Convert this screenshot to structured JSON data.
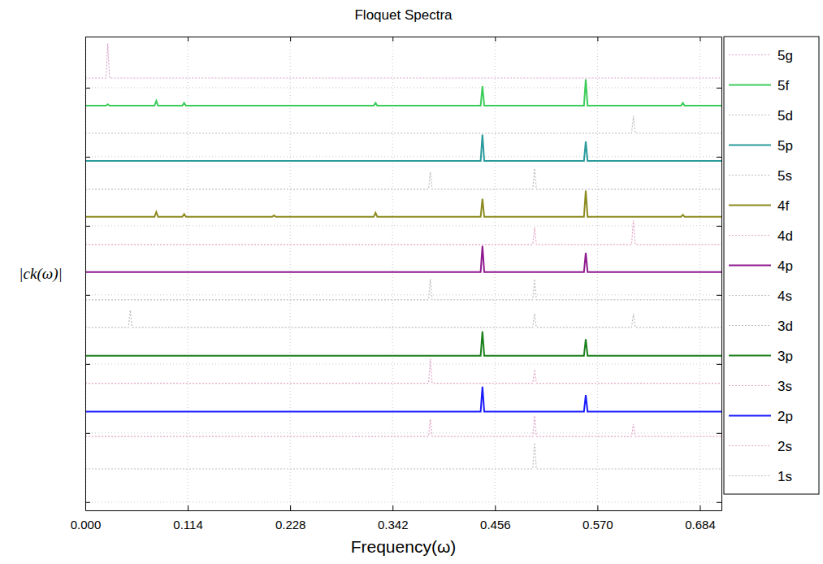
{
  "chart_data": {
    "type": "line",
    "title": "Floquet Spectra",
    "x_label": "Frequency(ω)",
    "y_label": "|ck(ω)|",
    "x": [
      0,
      0.023,
      0.025,
      0.027,
      0.048,
      0.05,
      0.052,
      0.077,
      0.079,
      0.081,
      0.108,
      0.11,
      0.112,
      0.208,
      0.21,
      0.212,
      0.321,
      0.323,
      0.325,
      0.382,
      0.384,
      0.386,
      0.44,
      0.442,
      0.444,
      0.498,
      0.5,
      0.502,
      0.555,
      0.557,
      0.559,
      0.608,
      0.61,
      0.612,
      0.663,
      0.665,
      0.667,
      0.708
    ],
    "xlim": [
      0,
      0.708
    ],
    "xticks": [
      {
        "value": 0,
        "label": "0.000"
      },
      0.114,
      0.228,
      0.342,
      0.456,
      {
        "value": 0.57,
        "label": "0.570"
      },
      0.684
    ],
    "ylim": [
      -0.12,
      6.74
    ],
    "yticks": [
      0,
      1,
      2,
      3,
      4,
      5,
      6
    ],
    "tick_labels": "x",
    "grid": true,
    "legend": "right",
    "series": [
      {
        "name": "5g",
        "color": "#d9a3c8",
        "line_style": "dotted",
        "values": [
          6.14,
          6.14,
          6.64,
          6.14,
          6.14,
          6.14,
          6.14,
          6.14,
          6.14,
          6.14,
          6.14,
          6.14,
          6.14,
          6.14,
          6.14,
          6.14,
          6.14,
          6.14,
          6.14,
          6.14,
          6.14,
          6.14,
          6.14,
          6.14,
          6.14,
          6.14,
          6.14,
          6.14,
          6.14,
          6.14,
          6.14,
          6.14,
          6.14,
          6.14,
          6.14,
          6.14,
          6.14,
          6.14
        ]
      },
      {
        "name": "5f",
        "color": "#3ccc5a",
        "line_style": "solid",
        "values": [
          5.74,
          5.74,
          5.76,
          5.74,
          5.74,
          5.74,
          5.74,
          5.74,
          5.81,
          5.74,
          5.74,
          5.78,
          5.74,
          5.74,
          5.74,
          5.74,
          5.74,
          5.78,
          5.74,
          5.74,
          5.74,
          5.74,
          5.74,
          6.02,
          5.74,
          5.74,
          5.74,
          5.74,
          5.74,
          6.12,
          5.74,
          5.74,
          5.74,
          5.74,
          5.74,
          5.78,
          5.74,
          5.74
        ]
      },
      {
        "name": "5d",
        "color": "#bdbdbd",
        "line_style": "dotted",
        "values": [
          5.34,
          5.34,
          5.34,
          5.34,
          5.34,
          5.34,
          5.34,
          5.34,
          5.34,
          5.34,
          5.34,
          5.34,
          5.34,
          5.34,
          5.34,
          5.34,
          5.34,
          5.34,
          5.34,
          5.34,
          5.34,
          5.34,
          5.34,
          5.34,
          5.34,
          5.34,
          5.34,
          5.34,
          5.34,
          5.34,
          5.34,
          5.34,
          5.59,
          5.34,
          5.34,
          5.34,
          5.34,
          5.34
        ]
      },
      {
        "name": "5p",
        "color": "#2a9a9c",
        "line_style": "solid",
        "values": [
          4.94,
          4.94,
          4.94,
          4.94,
          4.94,
          4.94,
          4.94,
          4.94,
          4.94,
          4.94,
          4.94,
          4.94,
          4.94,
          4.94,
          4.94,
          4.94,
          4.94,
          4.94,
          4.94,
          4.94,
          4.94,
          4.94,
          4.94,
          5.32,
          4.94,
          4.94,
          4.94,
          4.94,
          4.94,
          5.22,
          4.94,
          4.94,
          4.94,
          4.94,
          4.94,
          4.94,
          4.94,
          4.94
        ]
      },
      {
        "name": "5s",
        "color": "#bdbdbd",
        "line_style": "dotted",
        "values": [
          4.53,
          4.53,
          4.53,
          4.53,
          4.53,
          4.53,
          4.53,
          4.53,
          4.53,
          4.53,
          4.53,
          4.53,
          4.53,
          4.53,
          4.53,
          4.53,
          4.53,
          4.53,
          4.53,
          4.53,
          4.78,
          4.53,
          4.53,
          4.53,
          4.53,
          4.53,
          4.83,
          4.53,
          4.53,
          4.53,
          4.53,
          4.53,
          4.53,
          4.53,
          4.53,
          4.53,
          4.53,
          4.53
        ]
      },
      {
        "name": "4f",
        "color": "#8c8a1e",
        "line_style": "solid",
        "values": [
          4.13,
          4.13,
          4.13,
          4.13,
          4.13,
          4.13,
          4.13,
          4.13,
          4.2,
          4.13,
          4.13,
          4.17,
          4.13,
          4.13,
          4.15,
          4.13,
          4.13,
          4.19,
          4.13,
          4.13,
          4.13,
          4.13,
          4.13,
          4.39,
          4.13,
          4.13,
          4.13,
          4.13,
          4.13,
          4.51,
          4.13,
          4.13,
          4.13,
          4.13,
          4.13,
          4.16,
          4.13,
          4.13
        ]
      },
      {
        "name": "4d",
        "color": "#e2a4c4",
        "line_style": "dotted",
        "values": [
          3.73,
          3.73,
          3.73,
          3.73,
          3.73,
          3.73,
          3.73,
          3.73,
          3.73,
          3.73,
          3.73,
          3.73,
          3.73,
          3.73,
          3.73,
          3.73,
          3.73,
          3.73,
          3.73,
          3.73,
          3.73,
          3.73,
          3.73,
          3.73,
          3.73,
          3.73,
          3.98,
          3.73,
          3.73,
          3.73,
          3.73,
          3.73,
          4.08,
          3.73,
          3.73,
          3.73,
          3.73,
          3.73
        ]
      },
      {
        "name": "4p",
        "color": "#8e1a8e",
        "line_style": "solid",
        "values": [
          3.33,
          3.33,
          3.33,
          3.33,
          3.33,
          3.33,
          3.33,
          3.33,
          3.33,
          3.33,
          3.33,
          3.33,
          3.33,
          3.33,
          3.33,
          3.33,
          3.33,
          3.33,
          3.33,
          3.33,
          3.33,
          3.33,
          3.33,
          3.71,
          3.33,
          3.33,
          3.33,
          3.33,
          3.33,
          3.61,
          3.33,
          3.33,
          3.33,
          3.33,
          3.33,
          3.33,
          3.33,
          3.33
        ]
      },
      {
        "name": "4s",
        "color": "#bdbdbd",
        "line_style": "dotted",
        "values": [
          2.93,
          2.93,
          2.93,
          2.93,
          2.93,
          2.93,
          2.93,
          2.93,
          2.93,
          2.93,
          2.93,
          2.93,
          2.93,
          2.93,
          2.93,
          2.93,
          2.93,
          2.93,
          2.93,
          2.93,
          3.23,
          2.93,
          2.93,
          2.93,
          2.93,
          2.93,
          3.23,
          2.93,
          2.93,
          2.93,
          2.93,
          2.93,
          2.93,
          2.93,
          2.93,
          2.93,
          2.93,
          2.93
        ]
      },
      {
        "name": "3d",
        "color": "#bdbdbd",
        "line_style": "dotted",
        "values": [
          2.53,
          2.53,
          2.53,
          2.53,
          2.53,
          2.78,
          2.53,
          2.53,
          2.53,
          2.53,
          2.53,
          2.53,
          2.53,
          2.53,
          2.53,
          2.53,
          2.53,
          2.53,
          2.53,
          2.53,
          2.53,
          2.53,
          2.53,
          2.53,
          2.53,
          2.53,
          2.73,
          2.53,
          2.53,
          2.53,
          2.53,
          2.53,
          2.73,
          2.53,
          2.53,
          2.53,
          2.53,
          2.53
        ]
      },
      {
        "name": "3p",
        "color": "#1b7f1b",
        "line_style": "solid",
        "values": [
          2.12,
          2.12,
          2.12,
          2.12,
          2.12,
          2.12,
          2.12,
          2.12,
          2.12,
          2.12,
          2.12,
          2.12,
          2.12,
          2.12,
          2.12,
          2.12,
          2.12,
          2.12,
          2.12,
          2.12,
          2.12,
          2.12,
          2.12,
          2.47,
          2.12,
          2.12,
          2.12,
          2.12,
          2.12,
          2.36,
          2.12,
          2.12,
          2.12,
          2.12,
          2.12,
          2.12,
          2.12,
          2.12
        ]
      },
      {
        "name": "3s",
        "color": "#e2a4c4",
        "line_style": "dotted",
        "values": [
          1.72,
          1.72,
          1.72,
          1.72,
          1.72,
          1.72,
          1.72,
          1.72,
          1.72,
          1.72,
          1.72,
          1.72,
          1.72,
          1.72,
          1.72,
          1.72,
          1.72,
          1.72,
          1.72,
          1.72,
          2.07,
          1.72,
          1.72,
          1.72,
          1.72,
          1.72,
          1.92,
          1.72,
          1.72,
          1.72,
          1.72,
          1.72,
          1.72,
          1.72,
          1.72,
          1.72,
          1.72,
          1.72
        ]
      },
      {
        "name": "2p",
        "color": "#1a1aff",
        "line_style": "solid",
        "values": [
          1.31,
          1.31,
          1.31,
          1.31,
          1.31,
          1.31,
          1.31,
          1.31,
          1.31,
          1.31,
          1.31,
          1.31,
          1.31,
          1.31,
          1.31,
          1.31,
          1.31,
          1.31,
          1.31,
          1.31,
          1.31,
          1.31,
          1.31,
          1.67,
          1.31,
          1.31,
          1.31,
          1.31,
          1.31,
          1.55,
          1.31,
          1.31,
          1.31,
          1.31,
          1.31,
          1.31,
          1.31,
          1.31
        ]
      },
      {
        "name": "2s",
        "color": "#e2a4c4",
        "line_style": "dotted",
        "values": [
          0.95,
          0.95,
          0.95,
          0.95,
          0.95,
          0.95,
          0.95,
          0.95,
          0.95,
          0.95,
          0.95,
          0.95,
          0.95,
          0.95,
          0.95,
          0.95,
          0.95,
          0.95,
          0.95,
          0.95,
          1.2,
          0.95,
          0.95,
          0.95,
          0.95,
          0.95,
          1.25,
          0.95,
          0.95,
          0.95,
          0.95,
          0.95,
          1.13,
          0.95,
          0.95,
          0.95,
          0.95,
          0.95
        ]
      },
      {
        "name": "1s",
        "color": "#bdbdbd",
        "line_style": "dotted",
        "values": [
          0.48,
          0.48,
          0.48,
          0.48,
          0.48,
          0.48,
          0.48,
          0.48,
          0.48,
          0.48,
          0.48,
          0.48,
          0.48,
          0.48,
          0.48,
          0.48,
          0.48,
          0.48,
          0.48,
          0.48,
          0.48,
          0.48,
          0.48,
          0.48,
          0.48,
          0.48,
          0.86,
          0.48,
          0.48,
          0.48,
          0.48,
          0.48,
          0.48,
          0.48,
          0.48,
          0.48,
          0.48,
          0.48
        ]
      }
    ]
  }
}
